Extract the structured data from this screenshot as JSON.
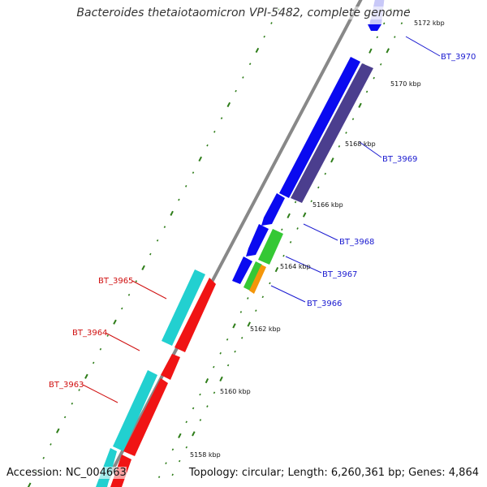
{
  "title": "Bacteroides thetaiotaomicron VPI-5482, complete genome",
  "accession": "Accession: NC_004663",
  "topology": "Topology: circular; Length: 6,260,361 bp; Genes: 4,864",
  "colors": {
    "backbone": "#888888",
    "tick": "#2e7d19",
    "blue": "#0a0af0",
    "slate": "#4b3e8e",
    "lavender": "#c8c8f8",
    "cyan": "#22d0d0",
    "red": "#f01414",
    "green": "#35c835",
    "orange": "#f4960a",
    "gene_label_blue": "#1a1ad0",
    "gene_label_red": "#d01010"
  },
  "scale_labels": [
    {
      "text": "5172 kbp",
      "kbp": 5172
    },
    {
      "text": "5170 kbp",
      "kbp": 5170
    },
    {
      "text": "5168 kbp",
      "kbp": 5168
    },
    {
      "text": "5166 kbp",
      "kbp": 5166
    },
    {
      "text": "5164 kbp",
      "kbp": 5164
    },
    {
      "text": "5162 kbp",
      "kbp": 5162
    },
    {
      "text": "5160 kbp",
      "kbp": 5160
    },
    {
      "text": "5158 kbp",
      "kbp": 5158
    }
  ],
  "gene_labels": [
    {
      "text": "BT_3970",
      "color": "blue"
    },
    {
      "text": "BT_3969",
      "color": "blue"
    },
    {
      "text": "BT_3968",
      "color": "blue"
    },
    {
      "text": "BT_3967",
      "color": "blue"
    },
    {
      "text": "BT_3966",
      "color": "blue"
    },
    {
      "text": "BT_3965",
      "color": "red"
    },
    {
      "text": "BT_3964",
      "color": "red"
    },
    {
      "text": "BT_3963",
      "color": "red"
    }
  ]
}
